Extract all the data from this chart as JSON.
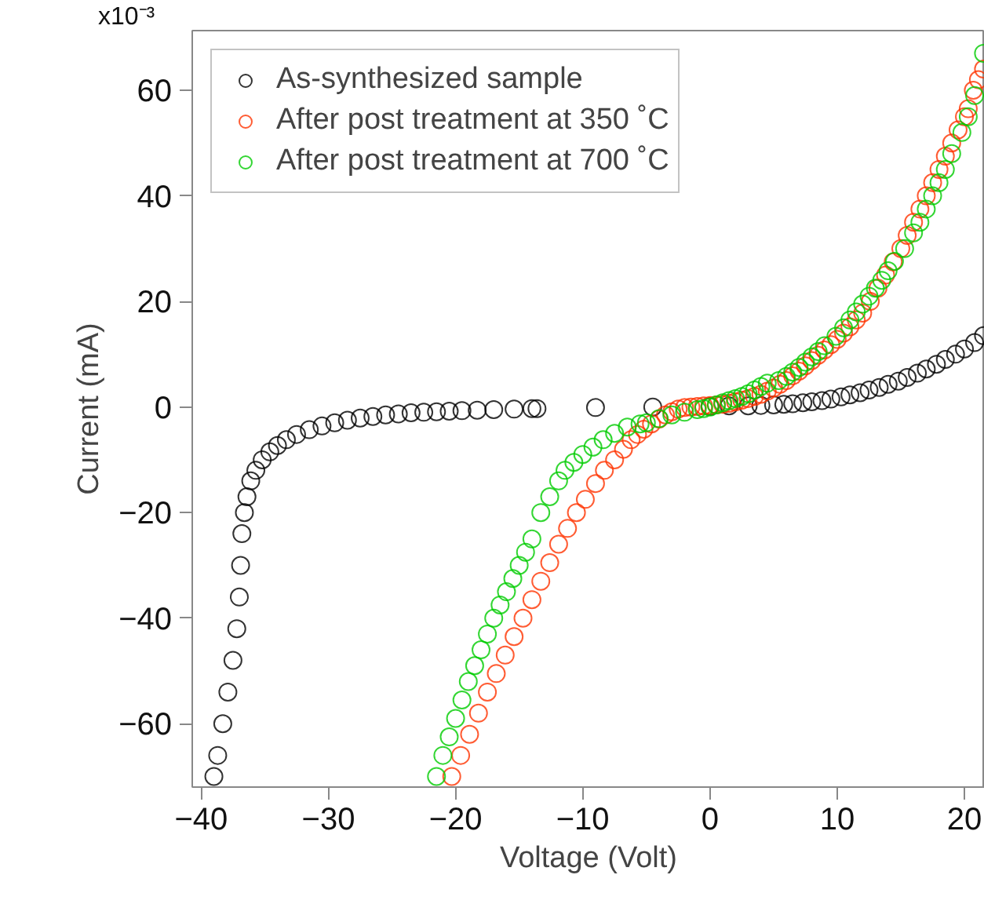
{
  "chart_data": {
    "type": "scatter",
    "xlabel": "Voltage (Volt)",
    "ylabel": "Current (mA)",
    "xlim": [
      -40.7,
      21.6
    ],
    "ylim": [
      -72,
      71.3
    ],
    "xticks": [
      -40,
      -30,
      -20,
      -10,
      0,
      10,
      20
    ],
    "yticks": [
      -60,
      -40,
      -20,
      0,
      20,
      40,
      60
    ],
    "annotations": [
      "x10⁻³"
    ],
    "grid": false,
    "legend": "top left",
    "marker": "circle",
    "series": [
      {
        "name": "As-synthesized sample",
        "color": "#000000",
        "x": [
          -39.0,
          -38.7,
          -38.3,
          -37.9,
          -37.5,
          -37.2,
          -37.0,
          -36.9,
          -36.8,
          -36.6,
          -36.4,
          -36.1,
          -35.7,
          -35.2,
          -34.6,
          -34.0,
          -33.3,
          -32.5,
          -31.5,
          -30.5,
          -29.5,
          -28.5,
          -27.5,
          -26.5,
          -25.5,
          -24.5,
          -23.5,
          -22.5,
          -21.5,
          -20.5,
          -19.5,
          -18.3,
          -17.0,
          -15.4,
          -14.0,
          -13.6,
          -9.0,
          -4.5,
          0,
          1.5,
          3,
          4,
          5,
          5.8,
          6.5,
          7.3,
          8,
          8.8,
          9.5,
          10.3,
          11,
          11.8,
          12.5,
          13.3,
          14,
          14.8,
          15.5,
          16.3,
          17,
          17.8,
          18.5,
          19.3,
          20,
          20.8,
          21.5
        ],
        "values": [
          -70,
          -66,
          -60,
          -54,
          -48,
          -42,
          -36,
          -30,
          -24,
          -20,
          -17,
          -14,
          -12,
          -10,
          -8.5,
          -7.3,
          -6.2,
          -5.2,
          -4.3,
          -3.6,
          -3.0,
          -2.5,
          -2.1,
          -1.8,
          -1.5,
          -1.3,
          -1.1,
          -1.0,
          -0.9,
          -0.8,
          -0.7,
          -0.6,
          -0.5,
          -0.4,
          -0.3,
          -0.3,
          -0.1,
          0,
          0.1,
          0.2,
          0.2,
          0.3,
          0.4,
          0.5,
          0.6,
          0.8,
          1.0,
          1.2,
          1.5,
          1.9,
          2.3,
          2.7,
          3.2,
          3.7,
          4.3,
          4.9,
          5.6,
          6.4,
          7.2,
          8.1,
          9.0,
          10.0,
          11.0,
          12.2,
          13.5
        ]
      },
      {
        "name": "After post treatment at 350 ˚C",
        "color": "#ff3300",
        "x": [
          -20.3,
          -19.6,
          -18.9,
          -18.2,
          -17.5,
          -16.8,
          -16.1,
          -15.4,
          -14.7,
          -14.0,
          -13.3,
          -12.6,
          -11.9,
          -11.2,
          -10.5,
          -9.8,
          -9.0,
          -8.3,
          -7.5,
          -6.8,
          -6.2,
          -5.7,
          -5.2,
          -4.6,
          -4.0,
          -3.5,
          -3.0,
          -2.5,
          -2.0,
          -1.5,
          -1.0,
          -0.5,
          0,
          0.5,
          1,
          1.5,
          2,
          2.5,
          3,
          3.5,
          4,
          4.5,
          5,
          5.5,
          6,
          6.5,
          7,
          7.5,
          8,
          8.5,
          9,
          9.5,
          10,
          10.5,
          11,
          11.5,
          12,
          12.6,
          13.2,
          13.8,
          14.4,
          15,
          15.5,
          16,
          16.5,
          17,
          17.5,
          18,
          18.5,
          19,
          19.5,
          20,
          20.3,
          20.7,
          21.1,
          21.5
        ],
        "values": [
          -70,
          -66,
          -62,
          -58,
          -54,
          -50.5,
          -47,
          -43.5,
          -40,
          -36.5,
          -33,
          -29.5,
          -26,
          -23,
          -20,
          -17.5,
          -14.5,
          -12,
          -10,
          -8,
          -6.2,
          -5.2,
          -4.2,
          -3.2,
          -2.3,
          -1.5,
          -0.9,
          -0.4,
          -0.1,
          0,
          0.1,
          0.2,
          0.3,
          0.4,
          0.5,
          0.7,
          1,
          1.3,
          1.6,
          2,
          2.4,
          3,
          3.6,
          4.3,
          5,
          5.9,
          6.8,
          7.8,
          8.8,
          9.8,
          10.8,
          11.8,
          12.8,
          14,
          15.2,
          16.5,
          17.8,
          20,
          22.5,
          25,
          27.5,
          30,
          32.5,
          35,
          37.5,
          40,
          42.5,
          45,
          47.5,
          50,
          52.5,
          55,
          56.5,
          60,
          62,
          64
        ]
      },
      {
        "name": "After post treatment at 700 ˚C",
        "color": "#00cc00",
        "x": [
          -21.5,
          -21.0,
          -20.5,
          -20.0,
          -19.5,
          -19.0,
          -18.5,
          -18.0,
          -17.5,
          -17.0,
          -16.5,
          -16.0,
          -15.5,
          -15.0,
          -14.5,
          -14.0,
          -13.3,
          -12.6,
          -11.9,
          -11.4,
          -10.7,
          -10.0,
          -9.2,
          -8.4,
          -7.5,
          -6.5,
          -5.5,
          -5.0,
          -4.0,
          -3.0,
          -2.0,
          -1.0,
          -0.5,
          0,
          0.5,
          1,
          1.5,
          2,
          2.5,
          3,
          3.5,
          4,
          4.5,
          5.4,
          6,
          6.5,
          7,
          7.5,
          8,
          8.5,
          9,
          9.9,
          10.5,
          11,
          11.5,
          12,
          12.5,
          13,
          13.5,
          14,
          14.5,
          15.3,
          16,
          16.5,
          17,
          17.5,
          18,
          18.5,
          19,
          19.8,
          20.3,
          20.8,
          21.5
        ],
        "values": [
          -70,
          -66,
          -62.5,
          -59,
          -55.5,
          -52,
          -49,
          -46,
          -43,
          -40,
          -37.5,
          -35,
          -32.5,
          -30,
          -27.5,
          -25,
          -20,
          -17,
          -14,
          -12,
          -10.5,
          -9,
          -7.6,
          -6.2,
          -5,
          -3.8,
          -3.2,
          -3,
          -2.2,
          -1.5,
          -1,
          -0.5,
          -0.3,
          0,
          0.4,
          0.8,
          1.2,
          1.6,
          2,
          2.5,
          3.2,
          3.9,
          4.5,
          5,
          5.8,
          6.6,
          7.5,
          8.5,
          9.5,
          10.5,
          11.6,
          13.4,
          15,
          16.5,
          18,
          19.5,
          21,
          22.5,
          24,
          25.8,
          27.6,
          30,
          33,
          35,
          37.5,
          40,
          42.5,
          45,
          48,
          52,
          55,
          59,
          67
        ]
      }
    ]
  }
}
